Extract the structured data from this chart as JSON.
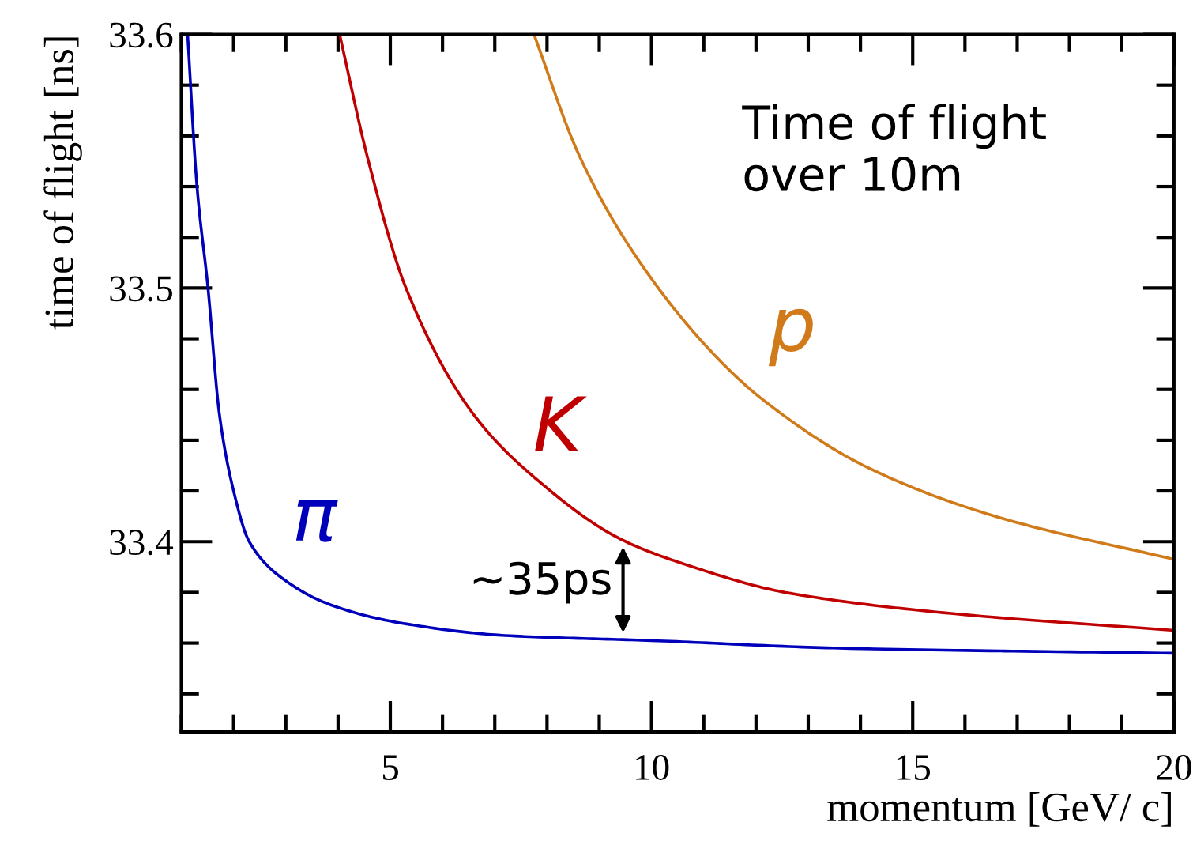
{
  "chart_data": {
    "type": "line",
    "xlabel": "momentum [GeV/ c]",
    "ylabel": "time of flight [ns]",
    "xlim": [
      1,
      20
    ],
    "xticks": [
      5,
      10,
      15,
      20
    ],
    "ylim": [
      33.325,
      33.6
    ],
    "yticks": [
      33.4,
      33.5,
      33.6
    ],
    "grid": false,
    "legend": false,
    "marker": "none",
    "line_style": "solid",
    "series": [
      {
        "name": "π",
        "color": "#0000bb",
        "x": [
          1.12,
          1.3,
          1.51,
          1.73,
          2.0,
          2.3,
          2.97,
          3.87,
          5.18,
          7.2,
          10,
          13.6,
          20
        ],
        "values": [
          33.6,
          33.54,
          33.5,
          33.45,
          33.42,
          33.4,
          33.385,
          33.375,
          33.368,
          33.363,
          33.361,
          33.358,
          33.356
        ]
      },
      {
        "name": "K",
        "color": "#c00000",
        "x": [
          4.03,
          4.57,
          5.3,
          6.6,
          7.72,
          9.41,
          10.65,
          12.56,
          15.58,
          20
        ],
        "values": [
          33.6,
          33.551,
          33.5,
          33.45,
          33.426,
          33.401,
          33.391,
          33.38,
          33.372,
          33.365
        ]
      },
      {
        "name": "p",
        "color": "#d07a1a",
        "x": [
          7.75,
          8.6,
          9.62,
          11.14,
          12.13,
          14.16,
          16.58,
          20
        ],
        "values": [
          33.6,
          33.553,
          33.515,
          33.475,
          33.456,
          33.429,
          33.41,
          33.393
        ]
      }
    ],
    "annotations": [
      "Time of flight\nover 10m",
      "~35ps"
    ]
  }
}
